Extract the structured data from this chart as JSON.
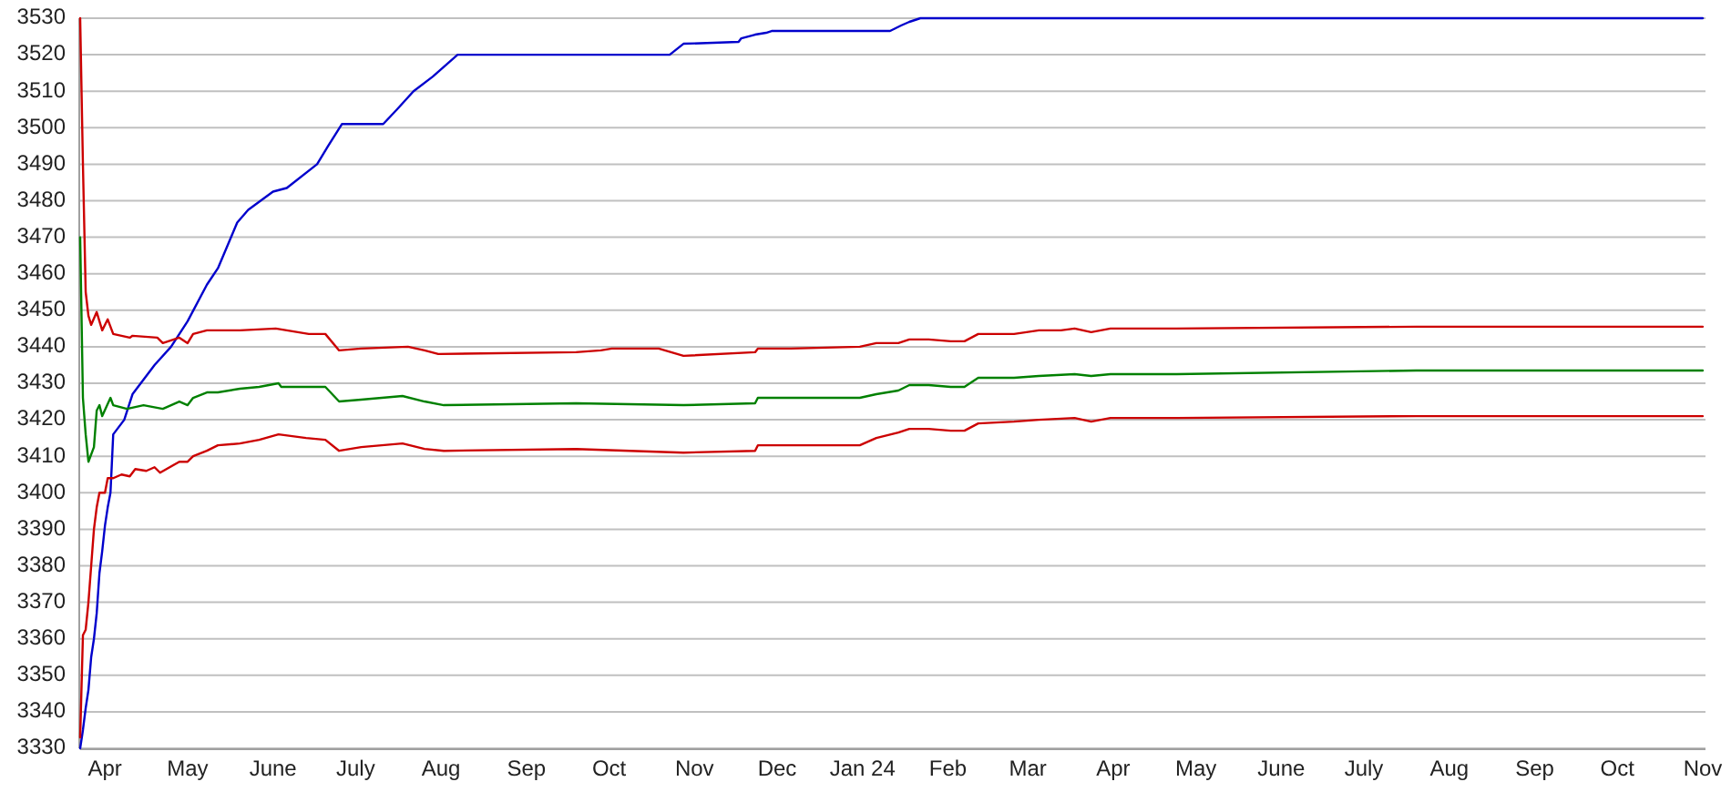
{
  "chart_data": {
    "type": "line",
    "xlim": [
      "2023-03-23",
      "2024-11-02"
    ],
    "xticks": [
      {
        "value": "2023-04-01",
        "label": "Apr"
      },
      {
        "value": "2023-05-01",
        "label": "May"
      },
      {
        "value": "2023-06-01",
        "label": "June"
      },
      {
        "value": "2023-07-01",
        "label": "July"
      },
      {
        "value": "2023-08-01",
        "label": "Aug"
      },
      {
        "value": "2023-09-01",
        "label": "Sep"
      },
      {
        "value": "2023-10-01",
        "label": "Oct"
      },
      {
        "value": "2023-11-01",
        "label": "Nov"
      },
      {
        "value": "2023-12-01",
        "label": "Dec"
      },
      {
        "value": "2024-01-01",
        "label": "Jan 24"
      },
      {
        "value": "2024-02-01",
        "label": "Feb"
      },
      {
        "value": "2024-03-01",
        "label": "Mar"
      },
      {
        "value": "2024-04-01",
        "label": "Apr"
      },
      {
        "value": "2024-05-01",
        "label": "May"
      },
      {
        "value": "2024-06-01",
        "label": "June"
      },
      {
        "value": "2024-07-01",
        "label": "July"
      },
      {
        "value": "2024-08-01",
        "label": "Aug"
      },
      {
        "value": "2024-09-01",
        "label": "Sep"
      },
      {
        "value": "2024-10-01",
        "label": "Oct"
      },
      {
        "value": "2024-11-01",
        "label": "Nov"
      }
    ],
    "ylim": [
      3330,
      3530
    ],
    "yticks": [
      3330,
      3340,
      3350,
      3360,
      3370,
      3380,
      3390,
      3400,
      3410,
      3420,
      3430,
      3440,
      3450,
      3460,
      3470,
      3480,
      3490,
      3500,
      3510,
      3520,
      3530
    ],
    "grid": "y",
    "series": [
      {
        "color": "#0000cc",
        "x": [
          "2023-03-23",
          "2023-03-24",
          "2023-03-25",
          "2023-03-26",
          "2023-03-27",
          "2023-03-28",
          "2023-03-29",
          "2023-03-30",
          "2023-03-31",
          "2023-04-01",
          "2023-04-02",
          "2023-04-03",
          "2023-04-04",
          "2023-04-06",
          "2023-04-08",
          "2023-04-11",
          "2023-04-19",
          "2023-04-25",
          "2023-05-01",
          "2023-05-08",
          "2023-05-12",
          "2023-05-19",
          "2023-05-23",
          "2023-06-01",
          "2023-06-06",
          "2023-06-17",
          "2023-06-21",
          "2023-06-26",
          "2023-07-11",
          "2023-07-16",
          "2023-07-22",
          "2023-07-29",
          "2023-08-07",
          "2023-10-23",
          "2023-10-28",
          "2023-11-17",
          "2023-11-18",
          "2023-11-23",
          "2023-11-27",
          "2023-11-29",
          "2024-01-11",
          "2024-01-15",
          "2024-01-18",
          "2024-01-22",
          "2024-11-01"
        ],
        "values": [
          3330,
          3335,
          3341,
          3346,
          3355,
          3360,
          3367,
          3378,
          3384,
          3391,
          3396,
          3400,
          3416,
          3418,
          3420,
          3427,
          3435,
          3440,
          3447,
          3457,
          3461.5,
          3474,
          3477.5,
          3482.5,
          3483.5,
          3490,
          3495,
          3501,
          3501,
          3505,
          3510,
          3514,
          3520,
          3520,
          3523,
          3523.5,
          3524.5,
          3525.5,
          3526,
          3526.5,
          3526.5,
          3528,
          3529,
          3530,
          3530
        ]
      },
      {
        "color": "#cc0000",
        "x": [
          "2023-03-23",
          "2023-03-24",
          "2023-03-25",
          "2023-03-26",
          "2023-03-27",
          "2023-03-29",
          "2023-03-31",
          "2023-04-02",
          "2023-04-04",
          "2023-04-10",
          "2023-04-11",
          "2023-04-20",
          "2023-04-22",
          "2023-04-28",
          "2023-05-01",
          "2023-05-03",
          "2023-05-08",
          "2023-05-20",
          "2023-06-02",
          "2023-06-14",
          "2023-06-20",
          "2023-06-25",
          "2023-07-03",
          "2023-07-20",
          "2023-07-26",
          "2023-07-31",
          "2023-09-19",
          "2023-09-28",
          "2023-10-02",
          "2023-10-19",
          "2023-10-28",
          "2023-11-23",
          "2023-11-24",
          "2023-12-06",
          "2023-12-31",
          "2024-01-06",
          "2024-01-14",
          "2024-01-18",
          "2024-01-25",
          "2024-02-02",
          "2024-02-07",
          "2024-02-12",
          "2024-02-25",
          "2024-03-05",
          "2024-03-13",
          "2024-03-18",
          "2024-03-24",
          "2024-03-31",
          "2024-04-24",
          "2024-07-20",
          "2024-11-01"
        ],
        "values": [
          3530,
          3490,
          3455,
          3448.5,
          3446,
          3449.5,
          3444.5,
          3447.5,
          3443.5,
          3442.5,
          3443,
          3442.5,
          3441,
          3442.5,
          3441,
          3443.5,
          3444.5,
          3444.5,
          3445,
          3443.5,
          3443.5,
          3439,
          3439.5,
          3440,
          3439,
          3438,
          3438.5,
          3439,
          3439.5,
          3439.5,
          3437.5,
          3438.5,
          3439.5,
          3439.5,
          3440,
          3441,
          3441,
          3442,
          3442,
          3441.5,
          3441.5,
          3443.5,
          3443.5,
          3444.5,
          3444.5,
          3445,
          3444,
          3445,
          3445,
          3445.5,
          3445.5
        ]
      },
      {
        "color": "#008000",
        "x": [
          "2023-03-23",
          "2023-03-24",
          "2023-03-25",
          "2023-03-26",
          "2023-03-28",
          "2023-03-29",
          "2023-03-30",
          "2023-03-31",
          "2023-04-03",
          "2023-04-04",
          "2023-04-09",
          "2023-04-15",
          "2023-04-22",
          "2023-04-28",
          "2023-05-01",
          "2023-05-03",
          "2023-05-08",
          "2023-05-12",
          "2023-05-20",
          "2023-05-27",
          "2023-06-03",
          "2023-06-04",
          "2023-06-13",
          "2023-06-20",
          "2023-06-25",
          "2023-07-03",
          "2023-07-18",
          "2023-07-26",
          "2023-08-02",
          "2023-09-19",
          "2023-10-28",
          "2023-11-23",
          "2023-11-24",
          "2023-12-31",
          "2024-01-06",
          "2024-01-14",
          "2024-01-18",
          "2024-01-25",
          "2024-02-02",
          "2024-02-07",
          "2024-02-12",
          "2024-02-25",
          "2024-03-05",
          "2024-03-18",
          "2024-03-24",
          "2024-03-31",
          "2024-04-24",
          "2024-07-20",
          "2024-11-01"
        ],
        "values": [
          3470,
          3426,
          3416,
          3408.5,
          3412.5,
          3422.5,
          3424,
          3421,
          3426,
          3424,
          3423,
          3424,
          3423,
          3425,
          3424,
          3426,
          3427.5,
          3427.5,
          3428.5,
          3429,
          3430,
          3429,
          3429,
          3429,
          3425,
          3425.5,
          3426.5,
          3425,
          3424,
          3424.5,
          3424,
          3424.5,
          3426,
          3426,
          3427,
          3428,
          3429.5,
          3429.5,
          3429,
          3429,
          3431.5,
          3431.5,
          3432,
          3432.5,
          3432,
          3432.5,
          3432.5,
          3433.5,
          3433.5
        ]
      },
      {
        "color": "#cc0000",
        "x": [
          "2023-03-23",
          "2023-03-24",
          "2023-03-25",
          "2023-03-26",
          "2023-03-27",
          "2023-03-28",
          "2023-03-29",
          "2023-03-30",
          "2023-04-01",
          "2023-04-02",
          "2023-04-04",
          "2023-04-07",
          "2023-04-10",
          "2023-04-12",
          "2023-04-16",
          "2023-04-19",
          "2023-04-21",
          "2023-04-28",
          "2023-05-01",
          "2023-05-03",
          "2023-05-08",
          "2023-05-12",
          "2023-05-20",
          "2023-05-27",
          "2023-06-03",
          "2023-06-13",
          "2023-06-20",
          "2023-06-25",
          "2023-07-03",
          "2023-07-18",
          "2023-07-26",
          "2023-08-02",
          "2023-09-19",
          "2023-10-28",
          "2023-11-23",
          "2023-11-24",
          "2023-12-31",
          "2024-01-06",
          "2024-01-14",
          "2024-01-18",
          "2024-01-25",
          "2024-02-02",
          "2024-02-07",
          "2024-02-12",
          "2024-02-25",
          "2024-03-05",
          "2024-03-18",
          "2024-03-24",
          "2024-03-31",
          "2024-04-24",
          "2024-07-20",
          "2024-11-01"
        ],
        "values": [
          3333,
          3361,
          3362.5,
          3370,
          3380,
          3390,
          3396,
          3400,
          3400,
          3404,
          3404,
          3405,
          3404.5,
          3406.5,
          3406,
          3407,
          3405.5,
          3408.5,
          3408.5,
          3410,
          3411.5,
          3413,
          3413.5,
          3414.5,
          3416,
          3415,
          3414.5,
          3411.5,
          3412.5,
          3413.5,
          3412,
          3411.5,
          3412,
          3411,
          3411.5,
          3413,
          3413,
          3415,
          3416.5,
          3417.5,
          3417.5,
          3417,
          3417,
          3419,
          3419.5,
          3420,
          3420.5,
          3419.5,
          3420.5,
          3420.5,
          3421,
          3421
        ]
      }
    ]
  }
}
